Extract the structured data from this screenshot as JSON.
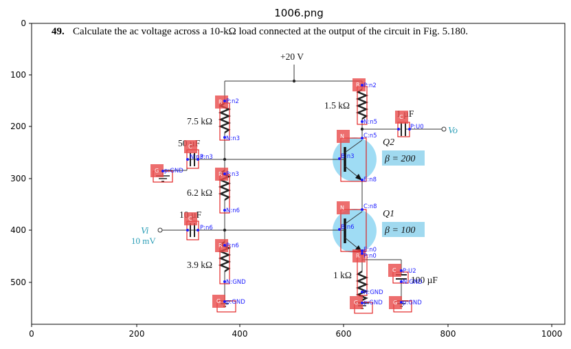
{
  "figure_title": "1006.png",
  "axes": {
    "x_ticks": [
      "0",
      "200",
      "400",
      "600",
      "800",
      "1000"
    ],
    "y_ticks": [
      "0",
      "100",
      "200",
      "300",
      "400",
      "500"
    ]
  },
  "problem": {
    "number": "49.",
    "text": "Calculate the ac voltage across a 10-kΩ load connected at the output of the circuit in Fig. 5.180."
  },
  "circuit": {
    "supply": "+20 V",
    "r1": "7.5 kΩ",
    "r2": "6.2 kΩ",
    "r3": "3.9 kΩ",
    "rc": "1.5 kΩ",
    "re": "1 kΩ",
    "c_top": "50 µF",
    "c_in": "10 µF",
    "c_out": "1 µF",
    "c_e": "100 µF",
    "vi": "Vi",
    "vi_value": "10 mV",
    "vo": "Vo",
    "q2": "Q2",
    "q1": "Q1",
    "beta2": "β = 200",
    "beta1": "β = 100"
  },
  "annotations": {
    "tags": {
      "R": "R",
      "C": "C",
      "G": "G",
      "N": "N"
    },
    "pins": {
      "r1_p": "P:n2",
      "r1_n": "N:n3",
      "r2_p": "P:n3",
      "r2_n": "N:n6",
      "r3_p": "P:n6",
      "r3_n": "N:GND",
      "rc_p": "P:n2",
      "rc_n": "N:n5",
      "re_p": "P:n0",
      "re_n": "N:GND",
      "cc_p": "P:U0",
      "c50_p": "P:n3",
      "c50_n": "N:n3",
      "c10_p": "P:n6",
      "ce_p": "P:U2",
      "ce_n": "N:GND",
      "q2_c": "C:n5",
      "q2_b": "B:n3",
      "q2_e": "E:n8",
      "q1_c": "C:n8",
      "q1_b": "B:n6",
      "q1_e": "E:n0",
      "g1": "p:GND",
      "g2": "p:GND",
      "g3": "p:GND",
      "g4": "p:GND"
    }
  }
}
